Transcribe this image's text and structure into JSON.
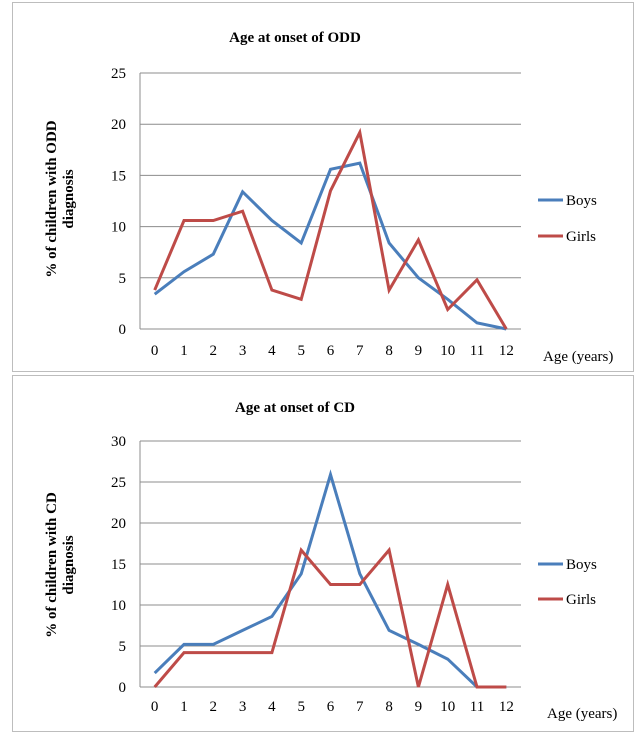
{
  "colors": {
    "boys": "#4a7ebb",
    "girls": "#be4b48",
    "grid": "#8c8c8c",
    "axis": "#8c8c8c"
  },
  "chart_data": [
    {
      "type": "line",
      "title": "Age at onset of ODD",
      "ylabel_line1": "% of children with ODD",
      "ylabel_line2": "diagnosis",
      "xlabel": "Age (years)",
      "x": [
        0,
        1,
        2,
        3,
        4,
        5,
        6,
        7,
        8,
        9,
        10,
        11,
        12
      ],
      "ylim": [
        0,
        25
      ],
      "yticks": [
        0,
        5,
        10,
        15,
        20,
        25
      ],
      "grid": true,
      "legend_position": "right",
      "series": [
        {
          "name": "Boys",
          "values": [
            3.4,
            5.6,
            7.3,
            13.4,
            10.6,
            8.4,
            15.6,
            16.2,
            8.4,
            5.0,
            2.9,
            0.6,
            0.0
          ]
        },
        {
          "name": "Girls",
          "values": [
            3.8,
            10.6,
            10.6,
            11.5,
            3.8,
            2.9,
            13.5,
            19.2,
            3.8,
            8.7,
            1.9,
            4.8,
            0.0
          ]
        }
      ]
    },
    {
      "type": "line",
      "title": "Age at onset of CD",
      "ylabel_line1": "% of children with CD",
      "ylabel_line2": "diagnosis",
      "xlabel": "Age (years)",
      "x": [
        0,
        1,
        2,
        3,
        4,
        5,
        6,
        7,
        8,
        9,
        10,
        11,
        12
      ],
      "ylim": [
        0,
        30
      ],
      "yticks": [
        0,
        5,
        10,
        15,
        20,
        25,
        30
      ],
      "grid": true,
      "legend_position": "right",
      "series": [
        {
          "name": "Boys",
          "values": [
            1.7,
            5.2,
            5.2,
            6.9,
            8.6,
            13.8,
            25.9,
            13.8,
            6.9,
            5.2,
            3.4,
            0.0,
            0.0
          ]
        },
        {
          "name": "Girls",
          "values": [
            0.0,
            4.2,
            4.2,
            4.2,
            4.2,
            16.7,
            12.5,
            12.5,
            16.7,
            0.0,
            12.5,
            0.0,
            0.0
          ]
        }
      ]
    }
  ]
}
